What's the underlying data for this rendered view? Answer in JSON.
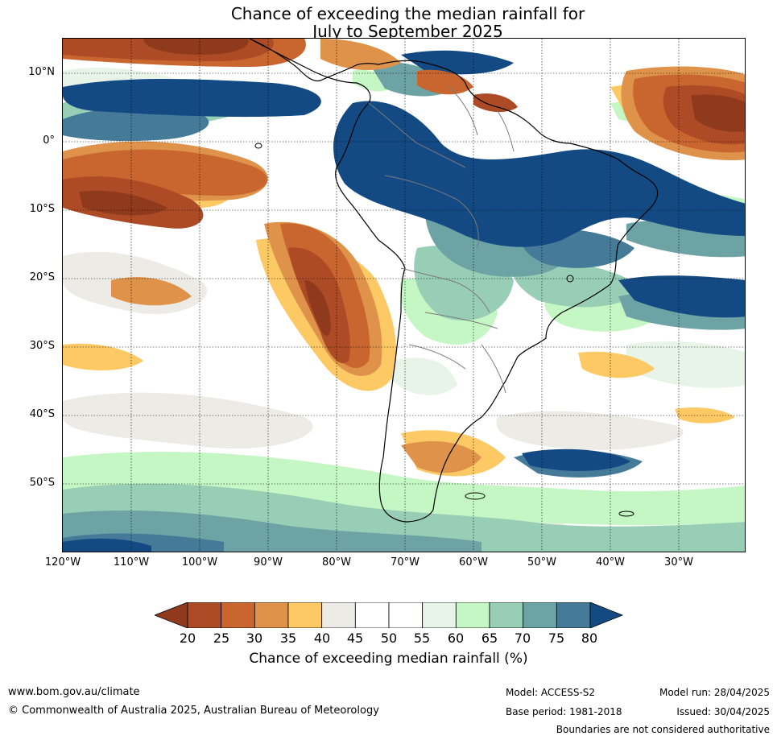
{
  "title": {
    "line1": "Chance of exceeding the median rainfall for",
    "line2": "July to September 2025"
  },
  "axes": {
    "lat_labels": [
      "10°N",
      "0°",
      "10°S",
      "20°S",
      "30°S",
      "40°S",
      "50°S"
    ],
    "lon_labels": [
      "120°W",
      "110°W",
      "100°W",
      "90°W",
      "80°W",
      "70°W",
      "60°W",
      "50°W",
      "40°W",
      "30°W"
    ]
  },
  "colorbar": {
    "ticks": [
      "20",
      "25",
      "30",
      "35",
      "40",
      "45",
      "50",
      "55",
      "60",
      "65",
      "70",
      "75",
      "80"
    ],
    "colors": [
      "#8f3a1c",
      "#ad4b26",
      "#c9652f",
      "#df924a",
      "#fcc965",
      "#edebe6",
      "#ffffff",
      "#ffffff",
      "#e8f4e8",
      "#c4f7c4",
      "#98ceb6",
      "#6ea3a5",
      "#457a98",
      "#144a83"
    ],
    "label": "Chance of exceeding median rainfall (%)"
  },
  "footer": {
    "url": "www.bom.gov.au/climate",
    "copyright": "© Commonwealth of Australia 2025, Australian Bureau of Meteorology",
    "model": "Model: ACCESS-S2",
    "base_period": "Base period: 1981-2018",
    "model_run": "Model run: 28/04/2025",
    "issued": "Issued: 30/04/2025",
    "boundaries": "Boundaries are not considered authoritative"
  }
}
